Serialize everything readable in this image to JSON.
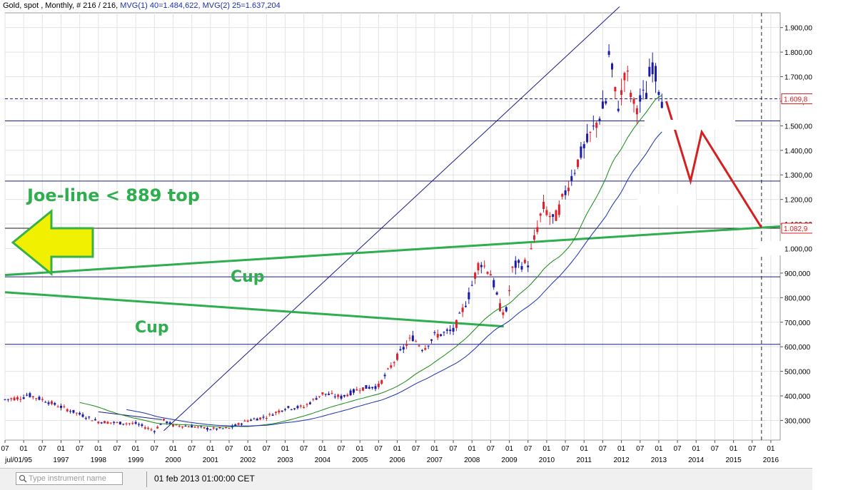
{
  "window": {
    "header_left": "Gold, spot , Monthly, # 216 / 216,",
    "header_mvg1": "MVG(1) 40=1.484,622,",
    "header_mvg2": "MVG(2) 25=1.637,204"
  },
  "toolbar": {
    "search_placeholder": "Type instrument name",
    "date_readout": "01 feb 2013 01:00:00 CET"
  },
  "colors": {
    "bull_candle": "#1a1aa8",
    "bear_candle": "#e0202a",
    "trendline": "#2eae4e",
    "projection": "#d42020",
    "hline": "#1a1a8a",
    "mvg1": "#1a2fb0",
    "mvg2": "#148a14",
    "arrow_fill": "#f0f000",
    "arrow_stroke": "#38b048"
  },
  "chart_data": {
    "type": "candlestick",
    "instrument": "Gold, spot",
    "interval": "Monthly",
    "ylim": [
      220,
      1960
    ],
    "y_ticks": [
      "300,000",
      "400,000",
      "500,000",
      "600,000",
      "700,000",
      "800,000",
      "900,000",
      "1.000,000",
      "1.100,000",
      "1.200,000",
      "1.300,000",
      "1.400,000",
      "1.500,000",
      "1.600,000",
      "1.700,000",
      "1.800,000",
      "1.900,000"
    ],
    "y_tick_values": [
      300,
      400,
      500,
      600,
      700,
      800,
      900,
      1000,
      1100,
      1200,
      1300,
      1400,
      1500,
      1600,
      1700,
      1800,
      1900
    ],
    "x_month_labels": [
      "07",
      "01",
      "07",
      "01",
      "07",
      "01",
      "07",
      "01",
      "07",
      "01",
      "07",
      "01",
      "07",
      "01",
      "07",
      "01",
      "07",
      "01",
      "07",
      "01",
      "07",
      "01",
      "07",
      "01",
      "07",
      "01",
      "07",
      "01",
      "07",
      "01",
      "07",
      "01",
      "07",
      "01",
      "07",
      "01",
      "07",
      "01",
      "07",
      "01",
      "07",
      "01"
    ],
    "x_month_values": [
      1995.5,
      1996.0,
      1996.5,
      1997.0,
      1997.5,
      1998.0,
      1998.5,
      1999.0,
      1999.5,
      2000.0,
      2000.5,
      2001.0,
      2001.5,
      2002.0,
      2002.5,
      2003.0,
      2003.5,
      2004.0,
      2004.5,
      2005.0,
      2005.5,
      2006.0,
      2006.5,
      2007.0,
      2007.5,
      2008.0,
      2008.5,
      2009.0,
      2009.5,
      2010.0,
      2010.5,
      2011.0,
      2011.5,
      2012.0,
      2012.5,
      2013.0,
      2013.5,
      2014.0,
      2014.5,
      2015.0,
      2015.5,
      2016.0
    ],
    "x_year_labels": [
      "jul/01/95",
      "1997",
      "1998",
      "1999",
      "2000",
      "2001",
      "2002",
      "2003",
      "2004",
      "2005",
      "2006",
      "2007",
      "2008",
      "2009",
      "2010",
      "2011",
      "2012",
      "2013",
      "2014",
      "2015",
      "2016"
    ],
    "x_year_values": [
      1995.5,
      1997.0,
      1998.0,
      1999.0,
      2000.0,
      2001.0,
      2002.0,
      2003.0,
      2004.0,
      2005.0,
      2006.0,
      2007.0,
      2008.0,
      2009.0,
      2010.0,
      2011.0,
      2012.0,
      2013.0,
      2014.0,
      2015.0,
      2016.0
    ],
    "price_path": [
      [
        1995.5,
        385
      ],
      [
        1996.0,
        395
      ],
      [
        1996.1,
        405
      ],
      [
        1996.5,
        385
      ],
      [
        1997.0,
        355
      ],
      [
        1997.5,
        325
      ],
      [
        1998.0,
        295
      ],
      [
        1998.5,
        290
      ],
      [
        1999.0,
        287
      ],
      [
        1999.5,
        258
      ],
      [
        1999.75,
        300
      ],
      [
        2000.0,
        280
      ],
      [
        2000.5,
        276
      ],
      [
        2001.0,
        265
      ],
      [
        2001.5,
        268
      ],
      [
        2002.0,
        300
      ],
      [
        2002.5,
        315
      ],
      [
        2003.0,
        350
      ],
      [
        2003.5,
        355
      ],
      [
        2004.0,
        410
      ],
      [
        2004.5,
        395
      ],
      [
        2005.0,
        430
      ],
      [
        2005.5,
        440
      ],
      [
        2006.0,
        560
      ],
      [
        2006.4,
        640
      ],
      [
        2006.7,
        590
      ],
      [
        2007.0,
        645
      ],
      [
        2007.5,
        665
      ],
      [
        2007.9,
        800
      ],
      [
        2008.2,
        950
      ],
      [
        2008.5,
        900
      ],
      [
        2008.75,
        760
      ],
      [
        2008.9,
        730
      ],
      [
        2009.1,
        930
      ],
      [
        2009.5,
        940
      ],
      [
        2009.9,
        1170
      ],
      [
        2010.2,
        1110
      ],
      [
        2010.5,
        1230
      ],
      [
        2010.9,
        1380
      ],
      [
        2011.3,
        1500
      ],
      [
        2011.65,
        1620
      ],
      [
        2011.67,
        1825
      ],
      [
        2011.8,
        1650
      ],
      [
        2011.95,
        1570
      ],
      [
        2012.1,
        1740
      ],
      [
        2012.35,
        1570
      ],
      [
        2012.7,
        1640
      ],
      [
        2012.8,
        1770
      ],
      [
        2013.0,
        1660
      ],
      [
        2013.1,
        1600
      ]
    ],
    "series": [
      {
        "name": "MVG(1) 40",
        "last_value": "1.484,622"
      },
      {
        "name": "MVG(2) 25",
        "last_value": "1.637,204"
      }
    ],
    "value_labels": [
      "1.609,8",
      "1.082,9"
    ],
    "price_level_lines": [
      "1.609,8",
      "1.082,9"
    ],
    "horizontal_levels": [
      1520,
      1275,
      885,
      610
    ],
    "annotations": {
      "joe_line": "Joe-line < 889 top",
      "cup_upper": "Cup",
      "cup_lower": "Cup"
    },
    "projection": [
      [
        2013.2,
        1600
      ],
      [
        2013.85,
        1275
      ],
      [
        2014.15,
        1475
      ],
      [
        2015.75,
        1085
      ]
    ],
    "vline_date": 2015.75,
    "cup_line_upper": [
      [
        1995.5,
        892
      ],
      [
        2016.25,
        1090
      ]
    ],
    "cup_line_lower": [
      [
        1995.5,
        822
      ],
      [
        2008.85,
        683
      ]
    ],
    "long_diagonal": [
      [
        1999.75,
        258
      ],
      [
        2011.95,
        1985
      ]
    ]
  }
}
